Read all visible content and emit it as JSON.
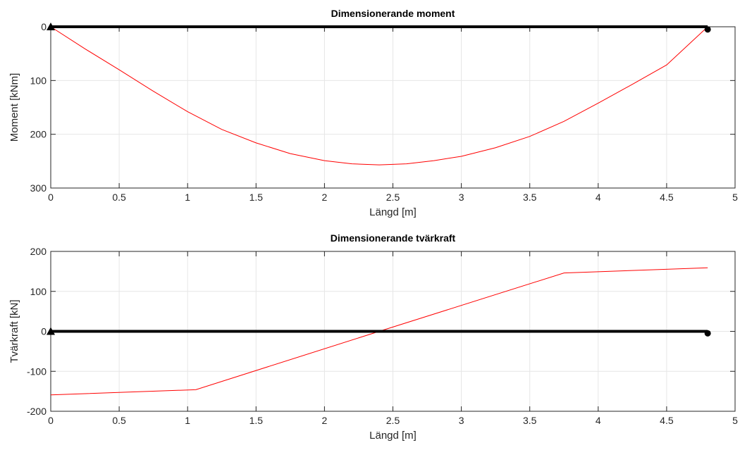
{
  "chart_data": [
    {
      "type": "line",
      "title": "Dimensionerande moment",
      "xlabel": "Längd [m]",
      "ylabel": "Moment [kNm]",
      "xlim": [
        0,
        5
      ],
      "ylim": [
        0,
        300
      ],
      "y_reversed": true,
      "grid": true,
      "x_ticks": [
        "0",
        "0.5",
        "1",
        "1.5",
        "2",
        "2.5",
        "3",
        "3.5",
        "4",
        "4.5",
        "5"
      ],
      "y_ticks": [
        "0",
        "100",
        "200",
        "300"
      ],
      "line_color": "#ff0000",
      "beam_color": "#000000",
      "series": [
        {
          "x": [
            0,
            0.25,
            0.5,
            0.75,
            1.0,
            1.25,
            1.5,
            1.75,
            2.0,
            2.2,
            2.4,
            2.6,
            2.8,
            3.0,
            3.25,
            3.5,
            3.75,
            4.0,
            4.25,
            4.5,
            4.8
          ],
          "y": [
            0,
            41,
            80,
            120,
            158,
            191,
            216,
            236,
            249,
            255,
            257,
            255,
            249,
            241,
            225,
            204,
            176,
            142,
            107,
            71,
            0
          ]
        }
      ],
      "beam": {
        "x": [
          0,
          4.8
        ],
        "y": [
          0,
          0
        ]
      },
      "supports": [
        {
          "type": "pin",
          "x": 0,
          "y": 0
        },
        {
          "type": "roller",
          "x": 4.8,
          "y": 5
        }
      ]
    },
    {
      "type": "line",
      "title": "Dimensionerande tvärkraft",
      "xlabel": "Längd [m]",
      "ylabel": "Tvärkraft [kN]",
      "xlim": [
        0,
        5
      ],
      "ylim": [
        -200,
        200
      ],
      "grid": true,
      "x_ticks": [
        "0",
        "0.5",
        "1",
        "1.5",
        "2",
        "2.5",
        "3",
        "3.5",
        "4",
        "4.5",
        "5"
      ],
      "y_ticks": [
        "200",
        "100",
        "0",
        "-100",
        "-200"
      ],
      "line_color": "#ff0000",
      "beam_color": "#000000",
      "series": [
        {
          "x": [
            0,
            1.06,
            2.4,
            3.75,
            4.8
          ],
          "y": [
            -159,
            -146,
            0,
            146,
            159
          ]
        }
      ],
      "beam": {
        "x": [
          0,
          4.8
        ],
        "y": [
          0,
          0
        ]
      },
      "supports": [
        {
          "type": "pin",
          "x": 0,
          "y": 0
        },
        {
          "type": "roller",
          "x": 4.8,
          "y": -5
        }
      ]
    }
  ]
}
